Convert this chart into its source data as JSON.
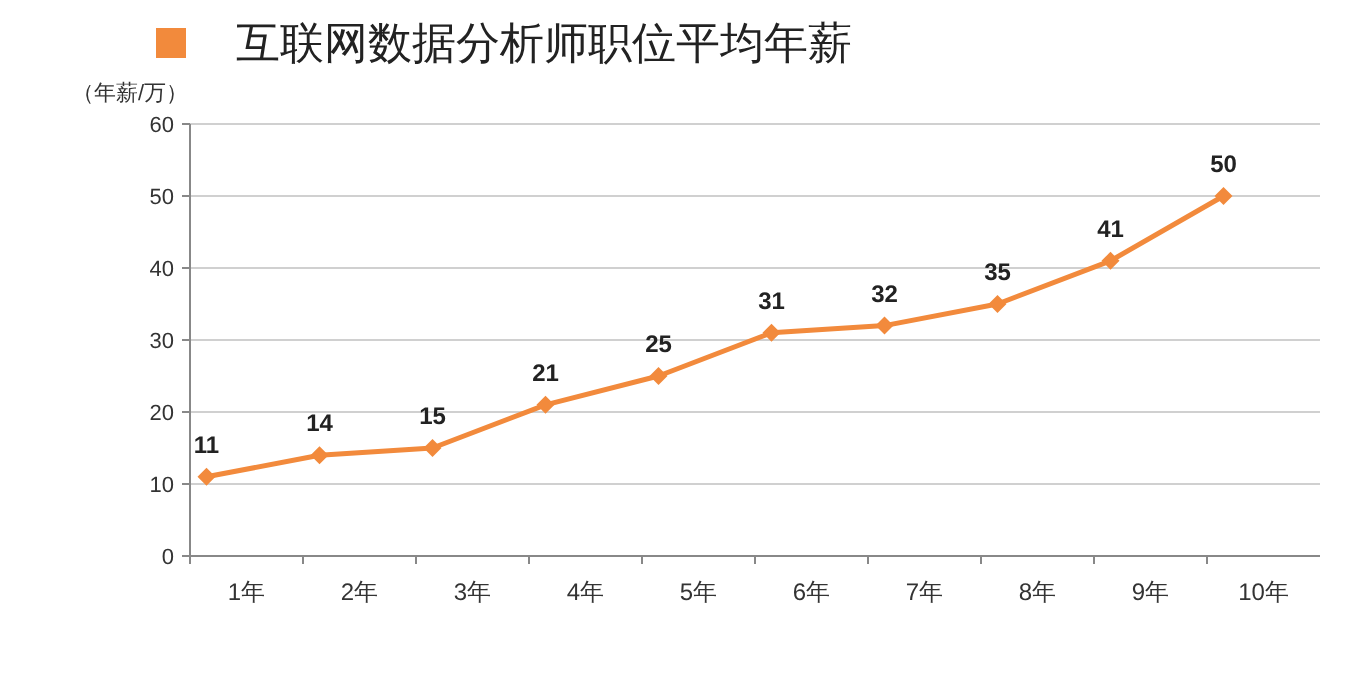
{
  "chart_data": {
    "type": "line",
    "ylabel": "（年薪/万）",
    "categories": [
      "1年",
      "2年",
      "3年",
      "4年",
      "5年",
      "6年",
      "7年",
      "8年",
      "9年",
      "10年"
    ],
    "series": [
      {
        "name": "互联网数据分析师职位平均年薪",
        "color": "#f28a3c",
        "values": [
          11,
          14,
          15,
          21,
          25,
          31,
          32,
          35,
          41,
          50
        ]
      }
    ],
    "ylim": [
      0,
      60
    ],
    "yticks": [
      0,
      10,
      20,
      30,
      40,
      50,
      60
    ],
    "grid": "y",
    "legend": "top",
    "marker": "diamond",
    "line_style": "solid",
    "data_labels": true
  }
}
